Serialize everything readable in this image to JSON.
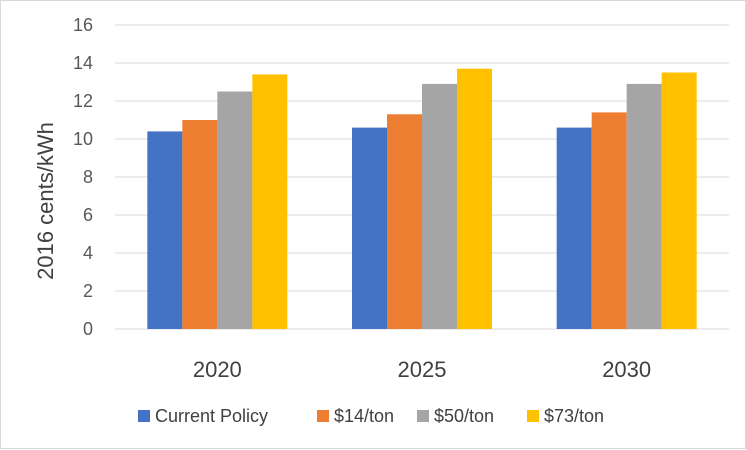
{
  "chart_data": {
    "type": "bar",
    "categories": [
      "2020",
      "2025",
      "2030"
    ],
    "series": [
      {
        "name": "Current Policy",
        "color": "#4472C4",
        "values": [
          10.4,
          10.6,
          10.6
        ]
      },
      {
        "name": "$14/ton",
        "color": "#ED7D31",
        "values": [
          11.0,
          11.3,
          11.4
        ]
      },
      {
        "name": "$50/ton",
        "color": "#A5A5A5",
        "values": [
          12.5,
          12.9,
          12.9
        ]
      },
      {
        "name": "$73/ton",
        "color": "#FFC000",
        "values": [
          13.4,
          13.7,
          13.5
        ]
      }
    ],
    "title": "",
    "xlabel": "",
    "ylabel": "2016 cents/kWh",
    "ylim": [
      0,
      16
    ],
    "yticks": [
      "0",
      "2",
      "4",
      "6",
      "8",
      "10",
      "12",
      "14",
      "16"
    ],
    "grid": true,
    "legend_position": "bottom"
  }
}
